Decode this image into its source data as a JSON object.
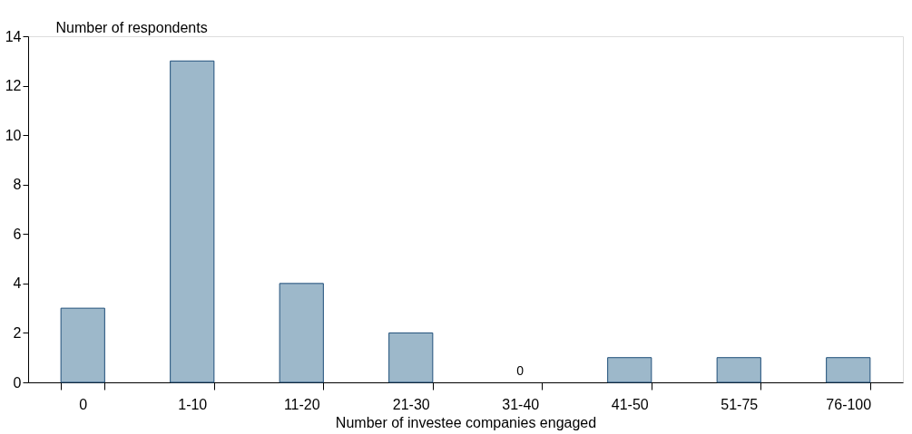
{
  "chart_data": {
    "type": "bar",
    "ylabel": "Number of respondents",
    "xlabel": "Number of investee companies engaged",
    "categories": [
      "0",
      "1-10",
      "11-20",
      "21-30",
      "31-40",
      "41-50",
      "51-75",
      "76-100"
    ],
    "values": [
      3,
      13,
      4,
      2,
      0,
      1,
      1,
      1
    ],
    "value_labels": [
      null,
      null,
      null,
      null,
      "0",
      null,
      null,
      null
    ],
    "color": "#9db8ca",
    "ylim": [
      0,
      14
    ],
    "yticks": [
      0,
      2,
      4,
      6,
      8,
      10,
      12,
      14
    ],
    "grid": false
  }
}
